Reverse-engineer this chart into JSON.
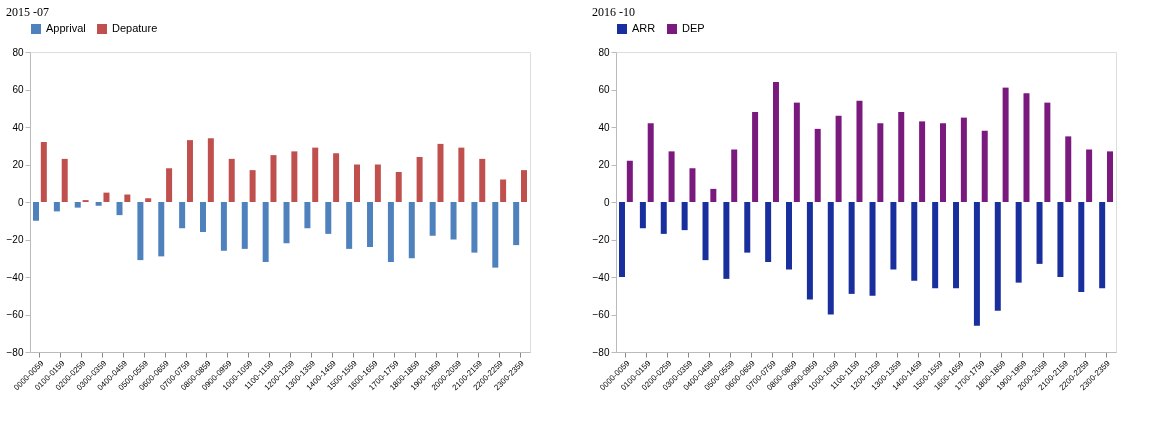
{
  "chart_data": [
    {
      "type": "bar",
      "title": "2015 -07",
      "categories": [
        "0000-0059",
        "0100-0159",
        "0200-0259",
        "0300-0359",
        "0400-0459",
        "0500-0559",
        "0600-0659",
        "0700-0759",
        "0800-0859",
        "0900-0959",
        "1000-1059",
        "1100-1159",
        "1200-1259",
        "1300-1359",
        "1400-1459",
        "1500-1559",
        "1600-1659",
        "1700-1759",
        "1800-1859",
        "1900-1959",
        "2000-2059",
        "2100-2159",
        "2200-2259",
        "2300-2359"
      ],
      "series": [
        {
          "name": "Apprival",
          "color": "#4f81bd",
          "values": [
            -10,
            -5,
            -3,
            -2,
            -7,
            -31,
            -29,
            -14,
            -16,
            -26,
            -25,
            -32,
            -22,
            -14,
            -17,
            -25,
            -24,
            -32,
            -30,
            -18,
            -20,
            -27,
            -35,
            -23
          ]
        },
        {
          "name": "Depature",
          "color": "#c0504d",
          "values": [
            32,
            23,
            1,
            5,
            4,
            2,
            18,
            33,
            34,
            23,
            17,
            25,
            27,
            29,
            26,
            20,
            20,
            16,
            24,
            31,
            29,
            23,
            12,
            17
          ]
        }
      ],
      "ylim": [
        -80,
        80
      ],
      "yticks": [
        -80,
        -60,
        -40,
        -20,
        0,
        20,
        40,
        60,
        80
      ],
      "legend": "top",
      "grid": false
    },
    {
      "type": "bar",
      "title": "2016 -10",
      "categories": [
        "0000-0059",
        "0100-0159",
        "0200-0259",
        "0300-0359",
        "0400-0459",
        "0500-0559",
        "0600-0659",
        "0700-0759",
        "0800-0859",
        "0900-0959",
        "1000-1059",
        "1100-1159",
        "1200-1259",
        "1300-1359",
        "1400-1459",
        "1500-1559",
        "1600-1659",
        "1700-1759",
        "1800-1859",
        "1900-1959",
        "2000-2059",
        "2100-2159",
        "2200-2259",
        "2300-2359"
      ],
      "series": [
        {
          "name": "ARR",
          "color": "#1a2f9e",
          "values": [
            -40,
            -14,
            -17,
            -15,
            -31,
            -41,
            -27,
            -32,
            -36,
            -52,
            -60,
            -49,
            -50,
            -36,
            -42,
            -46,
            -46,
            -66,
            -58,
            -43,
            -33,
            -40,
            -48,
            -46
          ]
        },
        {
          "name": "DEP",
          "color": "#7a1a7e",
          "values": [
            22,
            42,
            27,
            18,
            7,
            28,
            48,
            64,
            53,
            39,
            46,
            54,
            42,
            48,
            43,
            42,
            45,
            38,
            61,
            58,
            53,
            35,
            28,
            27
          ]
        }
      ],
      "ylim": [
        -80,
        80
      ],
      "yticks": [
        -80,
        -60,
        -40,
        -20,
        0,
        20,
        40,
        60,
        80
      ],
      "legend": "top",
      "grid": false
    }
  ]
}
